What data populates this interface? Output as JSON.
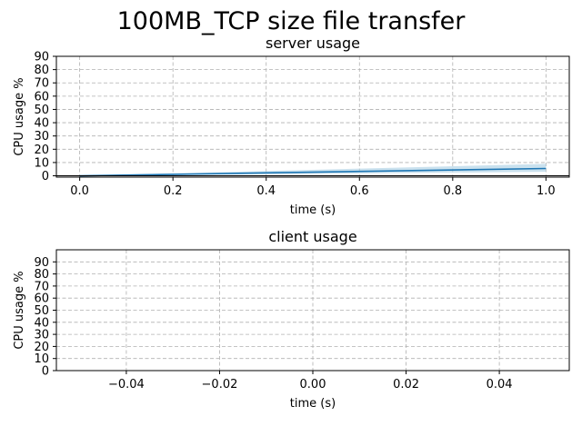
{
  "figure": {
    "suptitle": "100MB_TCP size file transfer"
  },
  "chart_data": [
    {
      "type": "line",
      "title": "server usage",
      "xlabel": "time (s)",
      "ylabel": "CPU usage %",
      "xlim": [
        -0.05,
        1.05
      ],
      "ylim": [
        -1,
        90
      ],
      "xticks": [
        0.0,
        0.2,
        0.4,
        0.6,
        0.8,
        1.0
      ],
      "xtick_labels": [
        "0.0",
        "0.2",
        "0.4",
        "0.6",
        "0.8",
        "1.0"
      ],
      "yticks": [
        0,
        10,
        20,
        30,
        40,
        50,
        60,
        70,
        80,
        90
      ],
      "ytick_labels": [
        "0",
        "10",
        "20",
        "30",
        "40",
        "50",
        "60",
        "70",
        "80",
        "90"
      ],
      "grid": true,
      "series": [
        {
          "x": [
            0.0,
            1.0
          ],
          "y": [
            0.0,
            5.5
          ],
          "band_lower": [
            0.0,
            3.0
          ],
          "band_upper": [
            0.0,
            9.0
          ],
          "color": "#1f77b4",
          "band_color": "#a6cde2"
        }
      ],
      "hline": {
        "y": 0,
        "color": "#000000"
      }
    },
    {
      "type": "line",
      "title": "client usage",
      "xlabel": "time (s)",
      "ylabel": "CPU usage %",
      "xlim": [
        -0.055,
        0.055
      ],
      "ylim": [
        0,
        100
      ],
      "xticks": [
        -0.04,
        -0.02,
        0.0,
        0.02,
        0.04
      ],
      "xtick_labels": [
        "−0.04",
        "−0.02",
        "0.00",
        "0.02",
        "0.04"
      ],
      "yticks": [
        0,
        10,
        20,
        30,
        40,
        50,
        60,
        70,
        80,
        90
      ],
      "ytick_labels": [
        "0",
        "10",
        "20",
        "30",
        "40",
        "50",
        "60",
        "70",
        "80",
        "90"
      ],
      "grid": true,
      "series": []
    }
  ]
}
